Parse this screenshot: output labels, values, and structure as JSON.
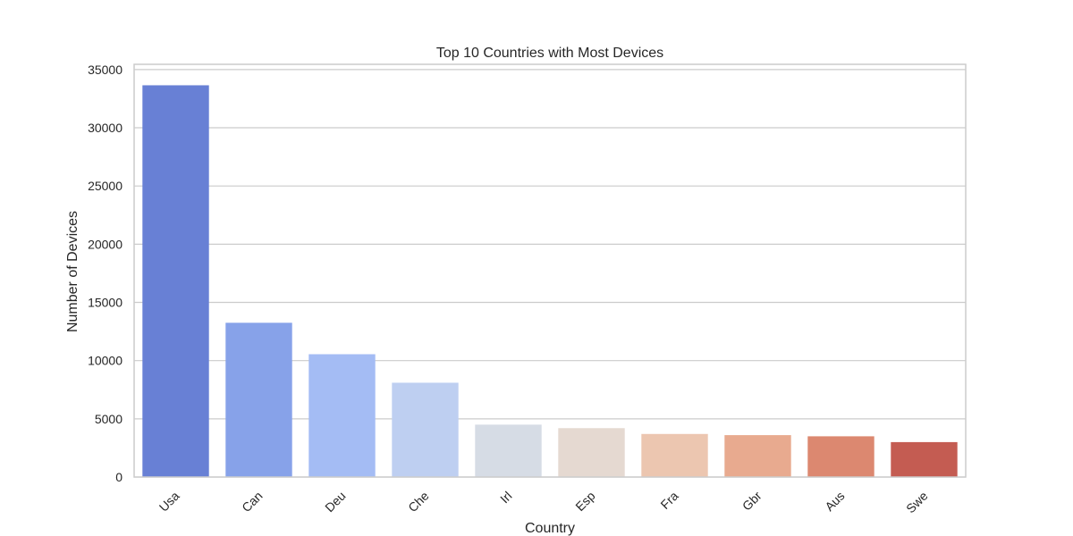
{
  "chart_data": {
    "type": "bar",
    "title": "Top 10 Countries with Most Devices",
    "xlabel": "Country",
    "ylabel": "Number of Devices",
    "categories": [
      "Usa",
      "Can",
      "Deu",
      "Che",
      "Irl",
      "Esp",
      "Fra",
      "Gbr",
      "Aus",
      "Swe"
    ],
    "values": [
      33650,
      13250,
      10550,
      8100,
      4500,
      4200,
      3700,
      3600,
      3500,
      3000
    ],
    "ylim": [
      0,
      35450
    ],
    "yticks": [
      0,
      5000,
      10000,
      15000,
      20000,
      25000,
      30000,
      35000
    ],
    "colors": [
      "#6880d5",
      "#87a2e9",
      "#a4bcf4",
      "#becff1",
      "#d6dce5",
      "#e5d9d1",
      "#ecc6b0",
      "#e8aa8f",
      "#dc8870",
      "#c45c52"
    ],
    "grid": true,
    "legend": "none"
  }
}
